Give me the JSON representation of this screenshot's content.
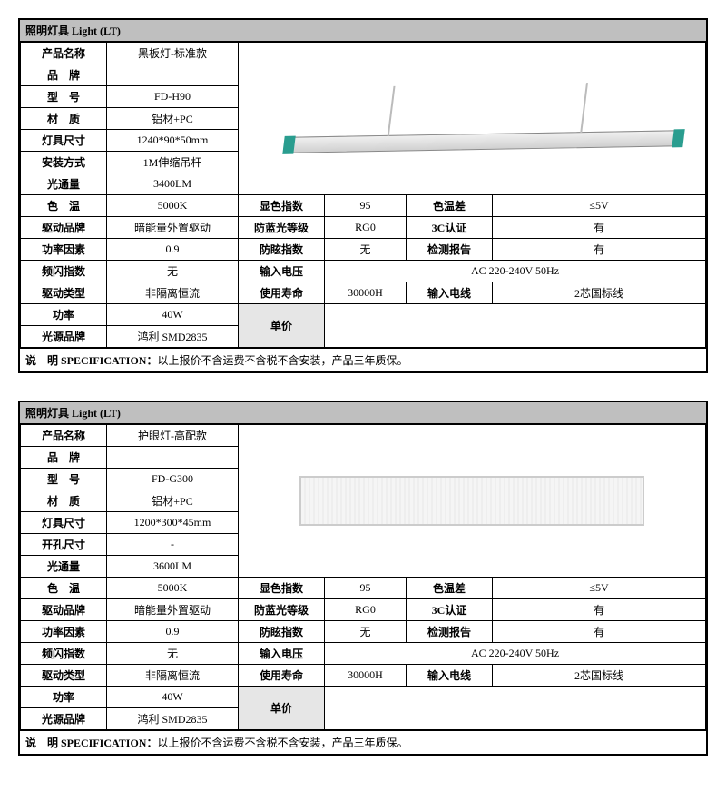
{
  "tables": [
    {
      "header": "照明灯具 Light (LT)",
      "imageType": 1,
      "rows_top": [
        {
          "label": "产品名称",
          "value": "黑板灯-标准款"
        },
        {
          "label": "品　牌",
          "value": ""
        },
        {
          "label": "型　号",
          "value": "FD-H90"
        },
        {
          "label": "材　质",
          "value": "铝材+PC"
        },
        {
          "label": "灯具尺寸",
          "value": "1240*90*50mm"
        },
        {
          "label": "安装方式",
          "value": "1M伸缩吊杆"
        },
        {
          "label": "光通量",
          "value": "3400LM"
        }
      ],
      "rows_mid": [
        {
          "l1": "色　温",
          "v1": "5000K",
          "l2": "显色指数",
          "v2": "95",
          "l3": "色温差",
          "v3": "≤5V"
        },
        {
          "l1": "驱动品牌",
          "v1": "暗能量外置驱动",
          "l2": "防蓝光等级",
          "v2": "RG0",
          "l3": "3C认证",
          "v3": "有"
        },
        {
          "l1": "功率因素",
          "v1": "0.9",
          "l2": "防眩指数",
          "v2": "无",
          "l3": "检测报告",
          "v3": "有"
        }
      ],
      "row_voltage": {
        "l1": "频闪指数",
        "v1": "无",
        "l2": "输入电压",
        "v2": "AC 220-240V 50Hz"
      },
      "row_life": {
        "l1": "驱动类型",
        "v1": "非隔离恒流",
        "l2": "使用寿命",
        "v2": "30000H",
        "l3": "输入电线",
        "v3": "2芯国标线"
      },
      "row_power_label": "功率",
      "row_power_value": "40W",
      "unit_price_label": "单价",
      "row_source_label": "光源品牌",
      "row_source_value": "鸿利 SMD2835",
      "footer_bold": "说　明 SPECIFICATION：",
      "footer_text": "以上报价不含运费不含税不含安装，产品三年质保。"
    },
    {
      "header": "照明灯具 Light (LT)",
      "imageType": 2,
      "rows_top": [
        {
          "label": "产品名称",
          "value": "护眼灯-高配款"
        },
        {
          "label": "品　牌",
          "value": ""
        },
        {
          "label": "型　号",
          "value": "FD-G300"
        },
        {
          "label": "材　质",
          "value": "铝材+PC"
        },
        {
          "label": "灯具尺寸",
          "value": "1200*300*45mm"
        },
        {
          "label": "开孔尺寸",
          "value": "-"
        },
        {
          "label": "光通量",
          "value": "3600LM"
        }
      ],
      "rows_mid": [
        {
          "l1": "色　温",
          "v1": "5000K",
          "l2": "显色指数",
          "v2": "95",
          "l3": "色温差",
          "v3": "≤5V"
        },
        {
          "l1": "驱动品牌",
          "v1": "暗能量外置驱动",
          "l2": "防蓝光等级",
          "v2": "RG0",
          "l3": "3C认证",
          "v3": "有"
        },
        {
          "l1": "功率因素",
          "v1": "0.9",
          "l2": "防眩指数",
          "v2": "无",
          "l3": "检测报告",
          "v3": "有"
        }
      ],
      "row_voltage": {
        "l1": "频闪指数",
        "v1": "无",
        "l2": "输入电压",
        "v2": "AC 220-240V 50Hz"
      },
      "row_life": {
        "l1": "驱动类型",
        "v1": "非隔离恒流",
        "l2": "使用寿命",
        "v2": "30000H",
        "l3": "输入电线",
        "v3": "2芯国标线"
      },
      "row_power_label": "功率",
      "row_power_value": "40W",
      "unit_price_label": "单价",
      "row_source_label": "光源品牌",
      "row_source_value": "鸿利 SMD2835",
      "footer_bold": "说　明 SPECIFICATION：",
      "footer_text": "以上报价不含运费不含税不含安装，产品三年质保。"
    }
  ]
}
